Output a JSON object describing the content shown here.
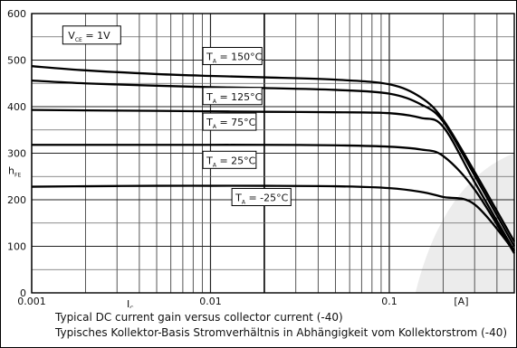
{
  "chart_data": {
    "type": "line",
    "x_scale": "log",
    "xlim": [
      0.001,
      0.5
    ],
    "ylim": [
      0,
      600
    ],
    "grid": true,
    "y_ticks": [
      "0",
      "100",
      "200",
      "300",
      "400",
      "500",
      "600"
    ],
    "x_ticks": [
      {
        "value": 0.001,
        "label": "0.001"
      },
      {
        "value": 0.01,
        "label": "0.01"
      },
      {
        "value": 0.1,
        "label": "0.1"
      }
    ],
    "xlabel": "I",
    "xlabel_sub": "C",
    "xunit": "[A]",
    "ylabel": "h",
    "ylabel_sub": "FE",
    "condition": {
      "text": "V",
      "sub": "CE",
      "suffix": " = 1V"
    },
    "series": [
      {
        "name": "T_A = 150°C",
        "label_text": "T",
        "label_sub": "A",
        "label_suffix": " = 150°C",
        "points": [
          [
            0.001,
            487
          ],
          [
            0.002,
            478
          ],
          [
            0.005,
            470
          ],
          [
            0.01,
            466
          ],
          [
            0.02,
            463
          ],
          [
            0.05,
            458
          ],
          [
            0.1,
            448
          ],
          [
            0.15,
            420
          ],
          [
            0.2,
            372
          ],
          [
            0.3,
            260
          ],
          [
            0.5,
            110
          ]
        ]
      },
      {
        "name": "T_A = 125°C",
        "label_text": "T",
        "label_sub": "A",
        "label_suffix": " = 125°C",
        "points": [
          [
            0.001,
            456
          ],
          [
            0.002,
            450
          ],
          [
            0.005,
            445
          ],
          [
            0.01,
            442
          ],
          [
            0.02,
            440
          ],
          [
            0.05,
            436
          ],
          [
            0.1,
            428
          ],
          [
            0.15,
            405
          ],
          [
            0.2,
            368
          ],
          [
            0.3,
            252
          ],
          [
            0.5,
            100
          ]
        ]
      },
      {
        "name": "T_A = 75°C",
        "label_text": "T",
        "label_sub": "A",
        "label_suffix": " = 75°C",
        "points": [
          [
            0.001,
            393
          ],
          [
            0.002,
            392
          ],
          [
            0.005,
            391
          ],
          [
            0.01,
            390
          ],
          [
            0.02,
            389
          ],
          [
            0.05,
            388
          ],
          [
            0.1,
            386
          ],
          [
            0.15,
            376
          ],
          [
            0.2,
            357
          ],
          [
            0.3,
            238
          ],
          [
            0.5,
            90
          ]
        ]
      },
      {
        "name": "T_A = 25°C",
        "label_text": "T",
        "label_sub": "A",
        "label_suffix": " = 25°C",
        "points": [
          [
            0.001,
            318
          ],
          [
            0.002,
            318
          ],
          [
            0.005,
            318
          ],
          [
            0.01,
            318
          ],
          [
            0.02,
            318
          ],
          [
            0.05,
            317
          ],
          [
            0.1,
            314
          ],
          [
            0.15,
            308
          ],
          [
            0.2,
            294
          ],
          [
            0.3,
            222
          ],
          [
            0.5,
            85
          ]
        ]
      },
      {
        "name": "T_A = -25°C",
        "label_text": "T",
        "label_sub": "A",
        "label_suffix": " = -25°C",
        "points": [
          [
            0.001,
            228
          ],
          [
            0.002,
            229
          ],
          [
            0.005,
            230
          ],
          [
            0.01,
            230
          ],
          [
            0.02,
            230
          ],
          [
            0.05,
            229
          ],
          [
            0.1,
            225
          ],
          [
            0.15,
            217
          ],
          [
            0.2,
            206
          ],
          [
            0.3,
            190
          ],
          [
            0.5,
            90
          ]
        ]
      }
    ]
  },
  "caption": {
    "line1": "Typical DC current gain versus collector current (-40)",
    "line2": "Typisches Kollektor-Basis Stromverhältnis in Abhängigkeit vom Kollektorstrom (-40)"
  }
}
